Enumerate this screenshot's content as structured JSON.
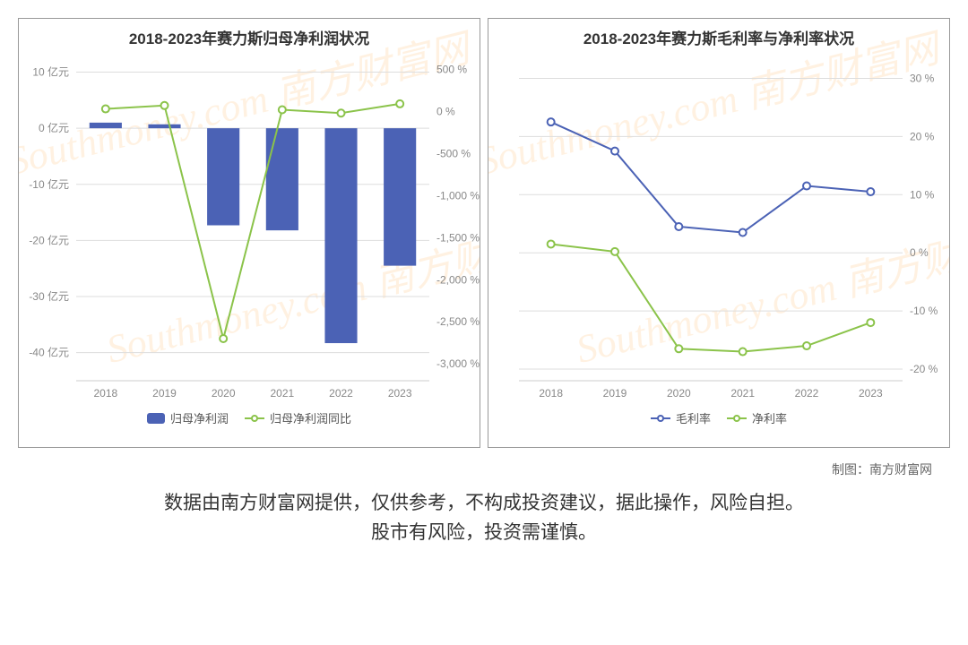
{
  "credit_label": "制图：南方财富网",
  "disclaimer_line1": "数据由南方财富网提供，仅供参考，不构成投资建议，据此操作，风险自担。",
  "disclaimer_line2": "股市有风险，投资需谨慎。",
  "watermark_text": "Southmoney.com 南方财富网",
  "chart_left": {
    "title": "2018-2023年赛力斯归母净利润状况",
    "type": "bar+line (dual y-axis)",
    "categories": [
      "2018",
      "2019",
      "2020",
      "2021",
      "2022",
      "2023"
    ],
    "bars": {
      "label": "归母净利润",
      "values": [
        1.0,
        0.7,
        -17.3,
        -18.2,
        -38.3,
        -24.5
      ],
      "color": "#4b62b5"
    },
    "line": {
      "label": "归母净利润同比",
      "values": [
        30,
        70,
        -2700,
        20,
        -20,
        90
      ],
      "color": "#8bc34a",
      "marker": "hollow-circle"
    },
    "y_left": {
      "min": -45,
      "max": 12,
      "ticks": [
        10,
        0,
        -10,
        -20,
        -30,
        -40
      ],
      "unit_suffix": " 亿元"
    },
    "y_right": {
      "min": -3200,
      "max": 600,
      "ticks": [
        500,
        0,
        -500,
        -1000,
        -1500,
        -2000,
        -2500,
        -3000
      ],
      "unit_suffix": " %"
    },
    "grid_color": "#dddddd",
    "background_color": "#ffffff",
    "bar_width_ratio": 0.55,
    "title_fontsize": 17,
    "axis_fontsize": 12
  },
  "chart_right": {
    "title": "2018-2023年赛力斯毛利率与净利率状况",
    "type": "line (single y-axis right)",
    "categories": [
      "2018",
      "2019",
      "2020",
      "2021",
      "2022",
      "2023"
    ],
    "series": [
      {
        "label": "毛利率",
        "values": [
          22.5,
          17.5,
          4.5,
          3.5,
          11.5,
          10.5
        ],
        "color": "#4b62b5",
        "marker": "hollow-circle"
      },
      {
        "label": "净利率",
        "values": [
          1.5,
          0.2,
          -16.5,
          -17.0,
          -16.0,
          -12.0
        ],
        "color": "#8bc34a",
        "marker": "hollow-circle"
      }
    ],
    "y_right": {
      "min": -22,
      "max": 33,
      "ticks": [
        30,
        20,
        10,
        0,
        -10,
        -20
      ],
      "unit_suffix": " %"
    },
    "grid_color": "#dddddd",
    "background_color": "#ffffff",
    "title_fontsize": 17,
    "axis_fontsize": 12
  },
  "colors": {
    "bar": "#4b62b5",
    "line_green": "#8bc34a",
    "line_blue": "#4b62b5",
    "grid": "#dddddd",
    "axis_text": "#888888",
    "watermark": "rgba(255,165,70,0.16)"
  }
}
